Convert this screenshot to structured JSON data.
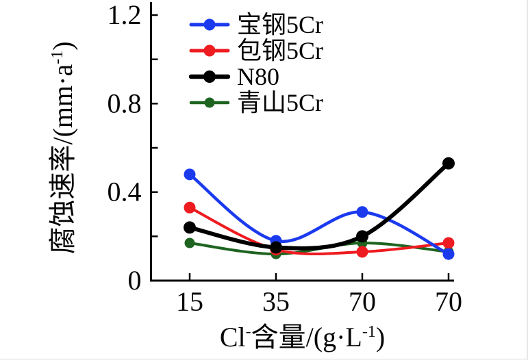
{
  "chart_data": {
    "type": "line",
    "title": "",
    "grid": false,
    "axis_color": "#000000",
    "x_axis": {
      "label_text": "Cl⁻含量/(g·L⁻¹)",
      "label_parts": {
        "base1": "Cl",
        "sup1": "-",
        "base2": "含量/(g·L",
        "sup2": "-1",
        "base3": ")"
      },
      "tick_labels": [
        "15",
        "35",
        "70",
        "70"
      ]
    },
    "y_axis": {
      "label_text": "腐蚀速率/(mm·a⁻¹)",
      "label_parts": {
        "base1": "腐蚀速率/(mm·a",
        "sup1": "-1",
        "base2": ")"
      },
      "tick_values": [
        0,
        0.4,
        0.8,
        1.2
      ],
      "tick_labels": [
        "0",
        "0.4",
        "0.8",
        "1.2"
      ],
      "minor_tick_values": [
        0.2,
        0.6,
        1.0
      ],
      "range": [
        0,
        1.2
      ]
    },
    "categories": [
      "15",
      "35",
      "70",
      "70"
    ],
    "series": [
      {
        "name": "宝钢5Cr",
        "color": "#1b3aee",
        "values": [
          0.48,
          0.18,
          0.31,
          0.12
        ],
        "line_width": 4.5,
        "marker_radius": 8.5,
        "legend_line_width": 5
      },
      {
        "name": "包钢5Cr",
        "color": "#ee1b20",
        "values": [
          0.33,
          0.14,
          0.13,
          0.17
        ],
        "line_width": 4,
        "marker_radius": 8.5,
        "legend_line_width": 5
      },
      {
        "name": "N80",
        "color": "#000000",
        "values": [
          0.24,
          0.15,
          0.2,
          0.53
        ],
        "line_width": 6,
        "marker_radius": 9,
        "legend_line_width": 6.5
      },
      {
        "name": "青山5Cr",
        "color": "#1e6420",
        "values": [
          0.17,
          0.12,
          0.17,
          0.13
        ],
        "line_width": 4,
        "marker_radius": 7.5,
        "legend_line_width": 4.5
      }
    ],
    "draw_order": [
      3,
      1,
      0,
      2
    ],
    "legend_position": "top-left-inside"
  }
}
